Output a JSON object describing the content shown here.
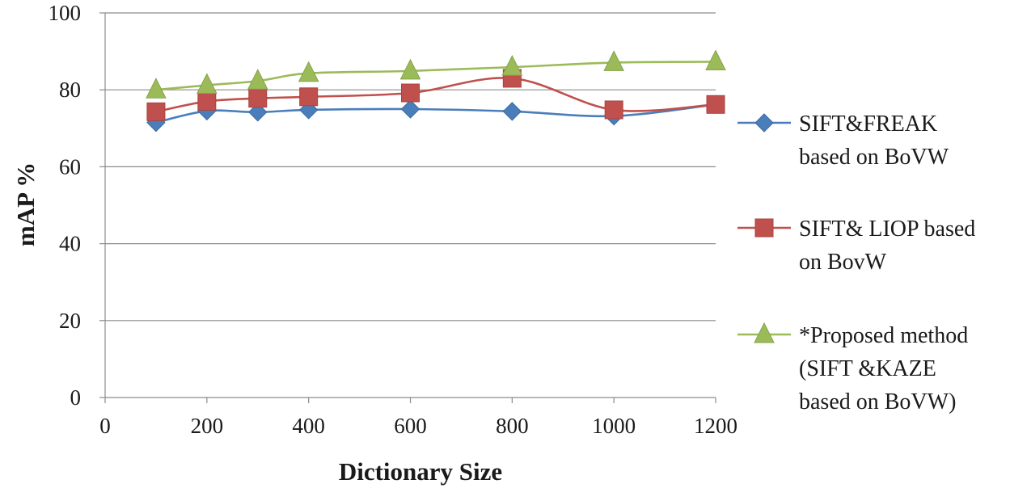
{
  "chart_data": {
    "type": "line",
    "title": "",
    "xlabel": "Dictionary Size",
    "ylabel": "mAP %",
    "xlim": [
      0,
      1200
    ],
    "ylim": [
      0,
      100
    ],
    "x_ticks": [
      "0",
      "200",
      "400",
      "600",
      "800",
      "1000",
      "1200"
    ],
    "y_ticks": [
      "0",
      "20",
      "40",
      "60",
      "80",
      "100"
    ],
    "grid": "horizontal",
    "legend_position": "right",
    "x": [
      100,
      200,
      300,
      400,
      600,
      800,
      1000,
      1200
    ],
    "series": [
      {
        "name": "SIFT&FREAK based on BoVW",
        "legend_lines": [
          "SIFT&FREAK",
          "based on BoVW"
        ],
        "marker": "diamond",
        "color": "#4a7ebb",
        "values": [
          71.5,
          74.5,
          74.2,
          74.8,
          75.0,
          74.4,
          73.2,
          76.2
        ]
      },
      {
        "name": "SIFT& LIOP based on BovW",
        "legend_lines": [
          "SIFT& LIOP based",
          "on BovW"
        ],
        "marker": "square",
        "color": "#c0504d",
        "values": [
          74.3,
          77.0,
          77.8,
          78.2,
          79.2,
          83.0,
          74.8,
          76.2
        ]
      },
      {
        "name": "*Proposed method (SIFT &KAZE based on BoVW)",
        "legend_lines": [
          "*Proposed method",
          "(SIFT &KAZE",
          "based on BoVW)"
        ],
        "marker": "triangle",
        "color": "#9bbb59",
        "values": [
          80.0,
          81.2,
          82.3,
          84.3,
          84.9,
          85.9,
          87.1,
          87.3
        ]
      }
    ]
  }
}
